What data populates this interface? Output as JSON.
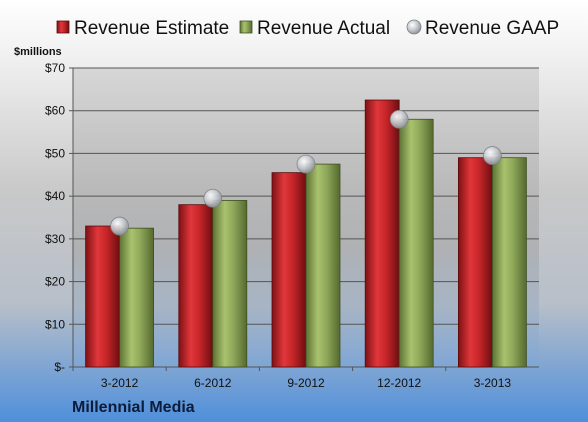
{
  "chart_data": {
    "type": "bar",
    "title": "Millennial Media",
    "ylabel": "$millions",
    "xlabel": "",
    "categories": [
      "3-2012",
      "6-2012",
      "9-2012",
      "12-2012",
      "3-2013"
    ],
    "ylim": [
      0,
      70
    ],
    "yticks": [
      0,
      10,
      20,
      30,
      40,
      50,
      60,
      70
    ],
    "ytick_labels": [
      "$-",
      "$10",
      "$20",
      "$30",
      "$40",
      "$50",
      "$60",
      "$70"
    ],
    "grid": true,
    "legend_position": "top",
    "series": [
      {
        "name": "Revenue Estimate",
        "kind": "bar",
        "color": "#c8262a",
        "values": [
          33,
          38,
          45.5,
          62.5,
          49
        ]
      },
      {
        "name": "Revenue Actual",
        "kind": "bar",
        "color": "#8fa85a",
        "values": [
          32.5,
          39,
          47.5,
          58,
          49
        ]
      },
      {
        "name": "Revenue GAAP",
        "kind": "marker",
        "color": "#b9bcc2",
        "values": [
          33,
          39.5,
          47.5,
          58,
          49.5
        ]
      }
    ]
  }
}
